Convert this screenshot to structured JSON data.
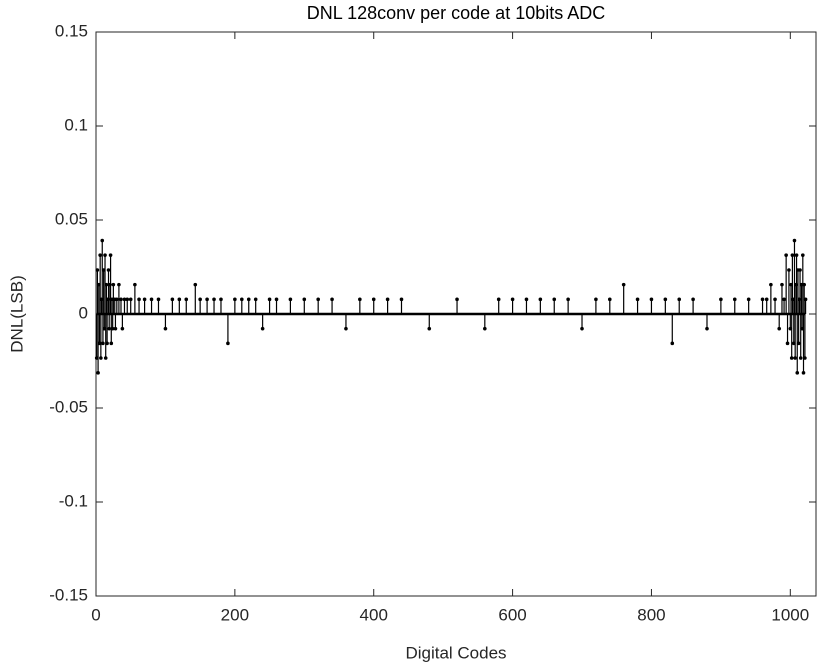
{
  "chart_data": {
    "type": "stem",
    "title": "DNL 128conv per code at 10bits ADC",
    "x_label": "Digital Codes",
    "y_label": "DNL(LSB)",
    "color": "#000000",
    "xlim": [
      0,
      1037
    ],
    "ylim": [
      -0.15,
      0.15
    ],
    "xticks": [
      0,
      200,
      400,
      600,
      800,
      1000
    ],
    "yticks": [
      -0.15,
      -0.1,
      -0.05,
      0,
      0.05,
      0.1,
      0.15
    ],
    "x": [
      1,
      2,
      3,
      4,
      5,
      6,
      7,
      8,
      9,
      10,
      11,
      12,
      13,
      14,
      15,
      16,
      17,
      18,
      19,
      20,
      21,
      22,
      23,
      24,
      25,
      27,
      28,
      30,
      33,
      36,
      38,
      41,
      45,
      50,
      56,
      62,
      70,
      80,
      90,
      100,
      110,
      120,
      130,
      143,
      150,
      160,
      170,
      180,
      190,
      200,
      210,
      220,
      230,
      240,
      250,
      260,
      280,
      300,
      320,
      340,
      360,
      380,
      400,
      420,
      440,
      480,
      520,
      560,
      580,
      600,
      620,
      640,
      660,
      680,
      700,
      720,
      740,
      760,
      780,
      800,
      820,
      830,
      840,
      860,
      880,
      900,
      920,
      940,
      960,
      966,
      972,
      978,
      984,
      988,
      991,
      994,
      996,
      998,
      1000,
      1001,
      1002,
      1003,
      1004,
      1005,
      1006,
      1007,
      1008,
      1009,
      1010,
      1011,
      1012,
      1013,
      1014,
      1015,
      1016,
      1017,
      1018,
      1019,
      1020,
      1021,
      1022
    ],
    "values": [
      -0.0234,
      0.0234,
      -0.0313,
      0.0156,
      -0.0156,
      0.0313,
      -0.0234,
      0.0078,
      0.0391,
      -0.0156,
      0.0234,
      -0.0078,
      0.0313,
      -0.0234,
      0.0156,
      -0.0156,
      0.0078,
      0.0234,
      -0.0078,
      0.0156,
      0.0313,
      -0.0156,
      0.0078,
      -0.0078,
      0.0156,
      0.0078,
      -0.0078,
      0.0078,
      0.0156,
      0.0078,
      -0.0078,
      0.0078,
      0.0078,
      0.0078,
      0.0156,
      0.0078,
      0.0078,
      0.0078,
      0.0078,
      -0.0078,
      0.0078,
      0.0078,
      0.0078,
      0.0156,
      0.0078,
      0.0078,
      0.0078,
      0.0078,
      -0.0156,
      0.0078,
      0.0078,
      0.0078,
      0.0078,
      -0.0078,
      0.0078,
      0.0078,
      0.0078,
      0.0078,
      0.0078,
      0.0078,
      -0.0078,
      0.0078,
      0.0078,
      0.0078,
      0.0078,
      -0.0078,
      0.0078,
      -0.0078,
      0.0078,
      0.0078,
      0.0078,
      0.0078,
      0.0078,
      0.0078,
      -0.0078,
      0.0078,
      0.0078,
      0.0156,
      0.0078,
      0.0078,
      0.0078,
      -0.0156,
      0.0078,
      0.0078,
      -0.0078,
      0.0078,
      0.0078,
      0.0078,
      0.0078,
      0.0078,
      0.0156,
      0.0078,
      -0.0078,
      0.0156,
      0.0078,
      0.0313,
      -0.0156,
      0.0234,
      -0.0078,
      0.0156,
      -0.0234,
      0.0313,
      0.0078,
      -0.0156,
      0.0391,
      -0.0234,
      0.0156,
      0.0313,
      -0.0313,
      0.0234,
      -0.0156,
      0.0078,
      0.0234,
      -0.0234,
      0.0156,
      -0.0078,
      0.0313,
      -0.0313,
      0.0156,
      -0.0234,
      0.0078
    ]
  }
}
